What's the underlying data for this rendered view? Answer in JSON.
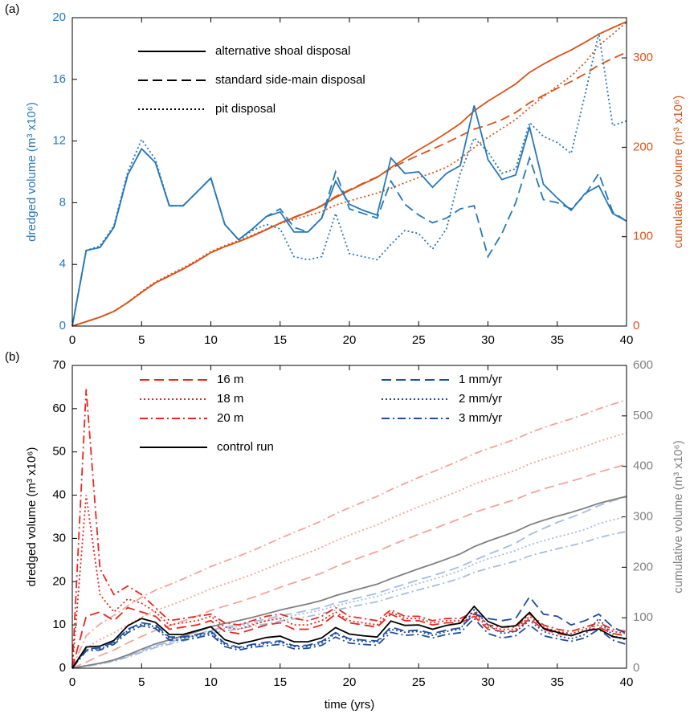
{
  "chart_data": [
    {
      "type": "line",
      "panel": "(a)",
      "ylabel": "dredged volume (m³ x10⁶)",
      "y2label": "cumulative volume (m³ x10⁶)",
      "ycolor": "#2878b8",
      "y2color": "#d95319",
      "legend_color": "#000000",
      "x": [
        0,
        1,
        2,
        3,
        4,
        5,
        6,
        7,
        8,
        9,
        10,
        11,
        12,
        13,
        14,
        15,
        16,
        17,
        18,
        19,
        20,
        21,
        22,
        23,
        24,
        25,
        26,
        27,
        28,
        29,
        30,
        31,
        32,
        33,
        34,
        35,
        36,
        37,
        38,
        39,
        40
      ],
      "xlim": [
        0,
        40
      ],
      "xticks": [
        0,
        5,
        10,
        15,
        20,
        25,
        30,
        35,
        40
      ],
      "ylim": [
        0,
        20
      ],
      "yticks": [
        0,
        4,
        8,
        12,
        16,
        20
      ],
      "y2lim": [
        0,
        345
      ],
      "y2ticks": [
        0,
        100,
        200,
        300
      ],
      "series": [
        {
          "name": "alternative shoal disposal",
          "color": "#2878b8",
          "dash": "solid",
          "values": [
            0,
            4.9,
            5.1,
            6.4,
            9.8,
            11.5,
            10.6,
            7.8,
            7.8,
            8.7,
            9.6,
            6.6,
            5.6,
            6.3,
            7.1,
            7.4,
            6.1,
            6.1,
            7.0,
            9.4,
            7.9,
            7.5,
            7.2,
            10.9,
            9.9,
            10.0,
            9.0,
            9.9,
            10.4,
            14.3,
            10.8,
            9.5,
            9.8,
            12.9,
            9.2,
            8.3,
            7.5,
            8.6,
            9.1,
            7.3,
            6.8
          ]
        },
        {
          "name": "standard side-main disposal",
          "color": "#2878b8",
          "dash": "dashed",
          "values": [
            0,
            4.9,
            5.1,
            6.4,
            9.8,
            11.5,
            10.6,
            7.8,
            7.8,
            8.7,
            9.6,
            6.6,
            5.6,
            6.3,
            7.1,
            7.6,
            6.4,
            6.1,
            7.0,
            10.0,
            7.6,
            7.3,
            7.0,
            9.4,
            7.9,
            7.2,
            6.7,
            7.0,
            7.6,
            7.8,
            4.5,
            6.0,
            8.0,
            10.9,
            8.2,
            8.0,
            7.6,
            8.5,
            9.9,
            7.4,
            6.8
          ]
        },
        {
          "name": "pit disposal",
          "color": "#2878b8",
          "dash": "dotted",
          "values": [
            0,
            4.9,
            5.2,
            6.5,
            10.0,
            12.1,
            10.8,
            7.8,
            7.8,
            8.7,
            9.6,
            6.6,
            5.6,
            6.2,
            6.6,
            6.3,
            4.5,
            4.3,
            4.5,
            7.3,
            4.7,
            4.5,
            4.3,
            5.3,
            6.2,
            6.0,
            5.0,
            6.3,
            9.9,
            12.2,
            11.3,
            9.9,
            10.2,
            13.2,
            12.3,
            11.9,
            11.2,
            15.0,
            19.0,
            13.0,
            13.3
          ]
        },
        {
          "color": "#d95319",
          "dash": "solid",
          "axis": "y2",
          "values": [
            0,
            4.9,
            10.0,
            16.4,
            26.2,
            37.7,
            48.3,
            56.1,
            63.9,
            72.6,
            82.2,
            88.8,
            94.4,
            100.7,
            107.8,
            115.2,
            121.3,
            127.4,
            134.4,
            143.8,
            151.7,
            159.2,
            166.4,
            177.3,
            187.2,
            197.2,
            206.2,
            216.1,
            226.5,
            240.8,
            251.6,
            261.1,
            270.9,
            283.8,
            293.0,
            301.3,
            308.8,
            317.4,
            326.5,
            333.8,
            340.6
          ]
        },
        {
          "color": "#d95319",
          "dash": "dashed",
          "axis": "y2",
          "values": [
            0,
            4.9,
            10.0,
            16.4,
            26.2,
            37.7,
            48.3,
            56.1,
            63.9,
            72.6,
            82.2,
            88.8,
            94.4,
            100.7,
            107.8,
            115.4,
            121.8,
            127.9,
            134.9,
            144.9,
            152.5,
            159.8,
            166.8,
            176.2,
            184.1,
            191.3,
            198.0,
            205.0,
            212.6,
            220.4,
            224.9,
            230.9,
            238.9,
            249.8,
            258.0,
            266.0,
            273.6,
            282.1,
            292.0,
            299.4,
            306.2
          ]
        },
        {
          "color": "#d95319",
          "dash": "dotted",
          "axis": "y2",
          "values": [
            0,
            4.9,
            10.1,
            16.6,
            26.6,
            38.7,
            49.5,
            57.3,
            65.1,
            73.8,
            83.4,
            90.0,
            95.6,
            101.8,
            108.4,
            114.7,
            119.2,
            123.5,
            128.0,
            135.3,
            140.0,
            144.5,
            148.8,
            154.1,
            160.3,
            166.3,
            171.3,
            177.6,
            187.5,
            199.7,
            211.0,
            220.9,
            231.1,
            244.3,
            256.6,
            268.5,
            279.7,
            294.7,
            313.7,
            326.7,
            340.0
          ]
        }
      ]
    },
    {
      "type": "line",
      "panel": "(b)",
      "xlabel": "time (yrs)",
      "ylabel": "dredged volume (m³ x10⁶)",
      "y2label": "cumulative volume (m³ x10⁶)",
      "ycolor": "#000000",
      "y2color": "#808080",
      "x": [
        0,
        1,
        2,
        3,
        4,
        5,
        6,
        7,
        8,
        9,
        10,
        11,
        12,
        13,
        14,
        15,
        16,
        17,
        18,
        19,
        20,
        21,
        22,
        23,
        24,
        25,
        26,
        27,
        28,
        29,
        30,
        31,
        32,
        33,
        34,
        35,
        36,
        37,
        38,
        39,
        40
      ],
      "xlim": [
        0,
        40
      ],
      "xticks": [
        0,
        5,
        10,
        15,
        20,
        25,
        30,
        35,
        40
      ],
      "ylim": [
        0,
        70
      ],
      "yticks": [
        0,
        10,
        20,
        30,
        40,
        50,
        60,
        70
      ],
      "y2lim": [
        0,
        600
      ],
      "y2ticks": [
        0,
        100,
        200,
        300,
        400,
        500,
        600
      ],
      "series": [
        {
          "name": "16 m",
          "color": "#e8281f",
          "dash": "dashed",
          "values": [
            0,
            12,
            13,
            11,
            14,
            13,
            12,
            9,
            9.5,
            10,
            11,
            8.5,
            8,
            9,
            10,
            10.5,
            9,
            9,
            10,
            12.5,
            10.5,
            10,
            9.5,
            12.5,
            11,
            11,
            10,
            10.5,
            10.5,
            12,
            9,
            8.5,
            8.5,
            11.5,
            9,
            8,
            7.5,
            8.5,
            9.5,
            8,
            7.5
          ]
        },
        {
          "name": "18 m",
          "color": "#e8281f",
          "dash": "dotted",
          "values": [
            0,
            40,
            17,
            13,
            16,
            15,
            13,
            10,
            10.5,
            11,
            12,
            9.5,
            9,
            10,
            11,
            11.5,
            10,
            10,
            11,
            13,
            11,
            10.5,
            10,
            13,
            11.5,
            11.5,
            10.5,
            11,
            11,
            12.5,
            9.5,
            9,
            9,
            12,
            9.5,
            8.5,
            8,
            9,
            10,
            8.5,
            8
          ]
        },
        {
          "name": "20 m",
          "color": "#e8281f",
          "dash": "dashdot",
          "values": [
            0,
            64.5,
            23,
            17,
            19,
            17,
            14,
            11,
            11.5,
            12,
            12.5,
            10.5,
            10,
            11,
            12,
            12.5,
            11.5,
            11,
            12,
            14,
            12,
            11.5,
            11,
            13.5,
            12,
            12,
            11,
            11.5,
            11.5,
            13,
            10,
            9.5,
            9.5,
            12.5,
            10,
            9,
            8.5,
            9.5,
            10.5,
            9,
            8.5
          ]
        },
        {
          "name": "1 mm/yr",
          "color": "#1f4e9e",
          "dash": "dashed",
          "values": [
            0,
            4.5,
            4.7,
            6.0,
            9.0,
            10.5,
            10.0,
            7.2,
            7.2,
            7.8,
            8.5,
            5.8,
            4.8,
            5.5,
            6.0,
            6.3,
            5.2,
            5.3,
            6.2,
            8.2,
            6.8,
            6.5,
            6.3,
            9.5,
            8.6,
            8.8,
            8.0,
            8.8,
            9.3,
            12.5,
            11.5,
            11.0,
            11.5,
            16.5,
            12.5,
            12.0,
            10.0,
            11.0,
            12.5,
            9.5,
            8.0
          ]
        },
        {
          "name": "2 mm/yr",
          "color": "#1f4e9e",
          "dash": "dotted",
          "values": [
            0,
            4.3,
            4.5,
            5.8,
            8.7,
            10.2,
            9.6,
            7.0,
            7.0,
            7.5,
            8.2,
            5.5,
            4.6,
            5.2,
            5.7,
            6.0,
            5.0,
            5.0,
            5.8,
            8.0,
            6.5,
            6.2,
            6.0,
            9.0,
            8.3,
            8.5,
            7.6,
            8.5,
            9.0,
            13.5,
            10.0,
            8.0,
            8.5,
            11.0,
            8.5,
            7.5,
            6.8,
            7.8,
            11.5,
            7.5,
            6.5
          ]
        },
        {
          "name": "3 mm/yr",
          "color": "#1f4e9e",
          "dash": "dashdot",
          "values": [
            0,
            4.0,
            4.2,
            5.5,
            8.2,
            9.8,
            9.2,
            6.5,
            6.5,
            7.0,
            7.8,
            5.0,
            4.2,
            4.8,
            5.2,
            5.5,
            4.5,
            4.6,
            5.3,
            7.2,
            5.8,
            5.5,
            5.3,
            8.3,
            7.6,
            7.8,
            7.0,
            7.8,
            8.2,
            11.5,
            8.0,
            7.0,
            7.5,
            10.0,
            7.5,
            6.8,
            6.2,
            7.0,
            9.0,
            6.5,
            5.5
          ]
        },
        {
          "name": "control run",
          "color": "#000000",
          "dash": "solid",
          "values": [
            0,
            4.9,
            5.1,
            6.4,
            9.8,
            11.5,
            10.6,
            7.8,
            7.8,
            8.7,
            9.6,
            6.6,
            5.6,
            6.3,
            7.1,
            7.4,
            6.1,
            6.1,
            7.0,
            9.4,
            7.9,
            7.5,
            7.2,
            10.9,
            9.9,
            10.0,
            9.0,
            9.9,
            10.4,
            14.3,
            10.8,
            9.5,
            9.8,
            12.9,
            9.2,
            8.3,
            7.5,
            8.6,
            9.1,
            7.3,
            6.8
          ]
        },
        {
          "color": "#f4a49a",
          "dash": "dashed",
          "axis": "y2",
          "values": [
            0,
            12,
            25,
            36,
            50,
            63,
            75,
            84,
            93.5,
            103.5,
            114.5,
            123,
            131,
            140,
            150,
            160.5,
            169.5,
            178.5,
            188.5,
            201,
            211.5,
            221.5,
            231,
            243.5,
            254.5,
            265.5,
            275.5,
            286,
            296.5,
            308.5,
            317.5,
            326,
            334.5,
            346,
            355,
            363,
            370.5,
            379,
            388.5,
            396.5,
            404
          ]
        },
        {
          "color": "#f4a49a",
          "dash": "dotted",
          "axis": "y2",
          "values": [
            0,
            40,
            57,
            70,
            86,
            101,
            114,
            124,
            134.5,
            145.5,
            157.5,
            167,
            176,
            186,
            197,
            208.5,
            218.5,
            228.5,
            239.5,
            252.5,
            263.5,
            274,
            284,
            297,
            308.5,
            320,
            330.5,
            341.5,
            352.5,
            365,
            374.5,
            383.5,
            392.5,
            404.5,
            414,
            422.5,
            430.5,
            439.5,
            449.5,
            458,
            466
          ]
        },
        {
          "color": "#f4a49a",
          "dash": "dashdot",
          "axis": "y2",
          "values": [
            0,
            64.5,
            87.5,
            104.5,
            123.5,
            140.5,
            154.5,
            165.5,
            177,
            189,
            201.5,
            212,
            222,
            233,
            245,
            257.5,
            269,
            280,
            292,
            306,
            318,
            329.5,
            340.5,
            354,
            366,
            378,
            389,
            400.5,
            412,
            425,
            435,
            444.5,
            454,
            466.5,
            476.5,
            485.5,
            494,
            503.5,
            514,
            523,
            531.5
          ]
        },
        {
          "color": "#a6bddf",
          "dash": "dashed",
          "axis": "y2",
          "values": [
            0,
            4.5,
            9.2,
            15.2,
            24.2,
            34.7,
            44.7,
            51.9,
            59.1,
            66.9,
            75.4,
            81.2,
            86.0,
            91.5,
            97.5,
            103.8,
            109.0,
            114.3,
            120.5,
            128.7,
            135.5,
            142.0,
            148.3,
            157.8,
            166.4,
            175.2,
            183.2,
            192.0,
            201.3,
            213.8,
            225.3,
            236.3,
            247.8,
            264.3,
            276.8,
            288.8,
            298.8,
            309.8,
            322.3,
            331.8,
            339.8
          ]
        },
        {
          "color": "#a6bddf",
          "dash": "dotted",
          "axis": "y2",
          "values": [
            0,
            4.3,
            8.8,
            14.6,
            23.3,
            33.5,
            43.1,
            50.1,
            57.1,
            64.6,
            72.8,
            78.3,
            82.9,
            88.1,
            93.8,
            99.8,
            104.8,
            109.8,
            115.6,
            123.6,
            130.1,
            136.3,
            142.3,
            151.3,
            159.6,
            168.1,
            175.7,
            184.2,
            193.2,
            206.7,
            216.7,
            224.7,
            233.2,
            244.2,
            252.7,
            260.2,
            267.0,
            274.8,
            286.3,
            293.8,
            300.3
          ]
        },
        {
          "color": "#a6bddf",
          "dash": "dashdot",
          "axis": "y2",
          "values": [
            0,
            4.0,
            8.2,
            13.7,
            21.9,
            31.7,
            40.9,
            47.4,
            53.9,
            60.9,
            68.7,
            73.7,
            77.9,
            82.7,
            87.9,
            93.4,
            97.9,
            102.5,
            107.8,
            115.0,
            120.8,
            126.3,
            131.6,
            139.9,
            147.5,
            155.3,
            162.3,
            170.1,
            178.3,
            189.8,
            197.8,
            204.8,
            212.3,
            222.3,
            229.8,
            236.6,
            242.8,
            249.8,
            258.8,
            265.3,
            270.8
          ]
        },
        {
          "color": "#808080",
          "dash": "solid",
          "axis": "y2",
          "values": [
            0,
            4.9,
            10.0,
            16.4,
            26.2,
            37.7,
            48.3,
            56.1,
            63.9,
            72.6,
            82.2,
            88.8,
            94.4,
            100.7,
            107.8,
            115.2,
            121.3,
            127.4,
            134.4,
            143.8,
            151.7,
            159.2,
            166.4,
            177.3,
            187.2,
            197.2,
            206.2,
            216.1,
            226.5,
            240.8,
            251.6,
            261.1,
            270.9,
            283.8,
            293.0,
            301.3,
            308.8,
            317.4,
            326.5,
            333.8,
            340.6
          ]
        }
      ]
    }
  ]
}
